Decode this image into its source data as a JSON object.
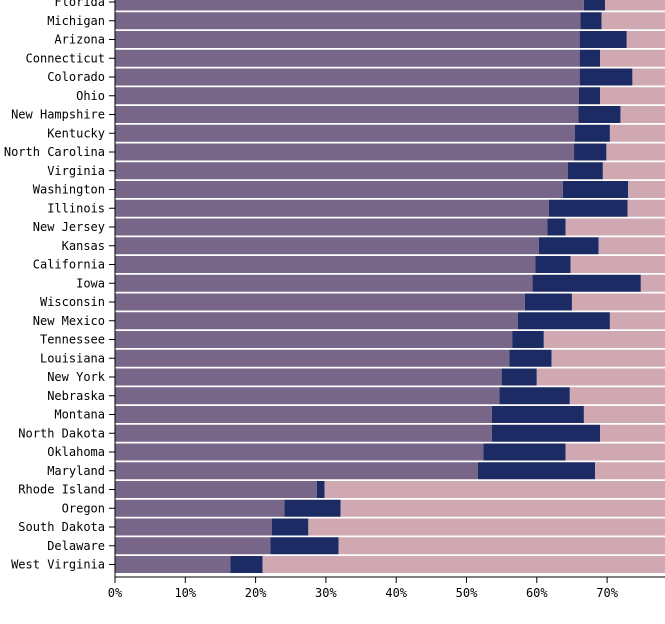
{
  "chart_data": {
    "type": "bar",
    "orientation": "horizontal",
    "stacked": true,
    "categories": [
      "Florida",
      "Michigan",
      "Arizona",
      "Connecticut",
      "Colorado",
      "Ohio",
      "New Hampshire",
      "Kentucky",
      "North Carolina",
      "Virginia",
      "Washington",
      "Illinois",
      "New Jersey",
      "Kansas",
      "California",
      "Iowa",
      "Wisconsin",
      "New Mexico",
      "Tennessee",
      "Louisiana",
      "New York",
      "Nebraska",
      "Montana",
      "North Dakota",
      "Oklahoma",
      "Maryland",
      "Rhode Island",
      "Oregon",
      "South Dakota",
      "Delaware",
      "West Virginia"
    ],
    "series": [
      {
        "color": "#786689",
        "values": [
          66.7,
          66.2,
          66.1,
          66.1,
          66.1,
          66.0,
          65.9,
          65.4,
          65.3,
          64.4,
          63.7,
          61.7,
          61.5,
          60.3,
          59.8,
          59.4,
          58.3,
          57.3,
          56.5,
          56.1,
          55.0,
          54.7,
          53.6,
          53.6,
          52.4,
          51.6,
          28.7,
          24.1,
          22.3,
          22.1,
          16.4
        ]
      },
      {
        "color": "#1c2b64",
        "values": [
          3.0,
          3.0,
          6.7,
          2.9,
          7.5,
          3.0,
          6.0,
          5.0,
          4.6,
          5.0,
          9.3,
          11.2,
          2.6,
          8.5,
          5.0,
          15.4,
          6.7,
          13.1,
          4.5,
          6.0,
          5.0,
          10.0,
          13.1,
          15.4,
          11.7,
          16.7,
          1.1,
          8.0,
          5.2,
          9.7,
          4.6
        ]
      },
      {
        "color": "#d0a8b2",
        "values": [
          30.3,
          30.8,
          27.2,
          31.0,
          26.4,
          31.0,
          28.1,
          29.6,
          30.1,
          30.6,
          27.0,
          27.1,
          35.9,
          31.2,
          35.2,
          25.2,
          35.0,
          29.6,
          39.0,
          37.9,
          40.0,
          35.3,
          33.3,
          31.0,
          35.9,
          31.7,
          70.2,
          67.9,
          72.5,
          68.2,
          79.0
        ]
      }
    ],
    "xlim": [
      0,
      100
    ],
    "xticks": [
      "0%",
      "10%",
      "20%",
      "30%",
      "40%",
      "50%",
      "60%",
      "70%"
    ],
    "xtick_values": [
      0,
      10,
      20,
      30,
      40,
      50,
      60,
      70
    ],
    "title": "",
    "xlabel": "",
    "ylabel": "",
    "grid": false,
    "legend": "none"
  }
}
